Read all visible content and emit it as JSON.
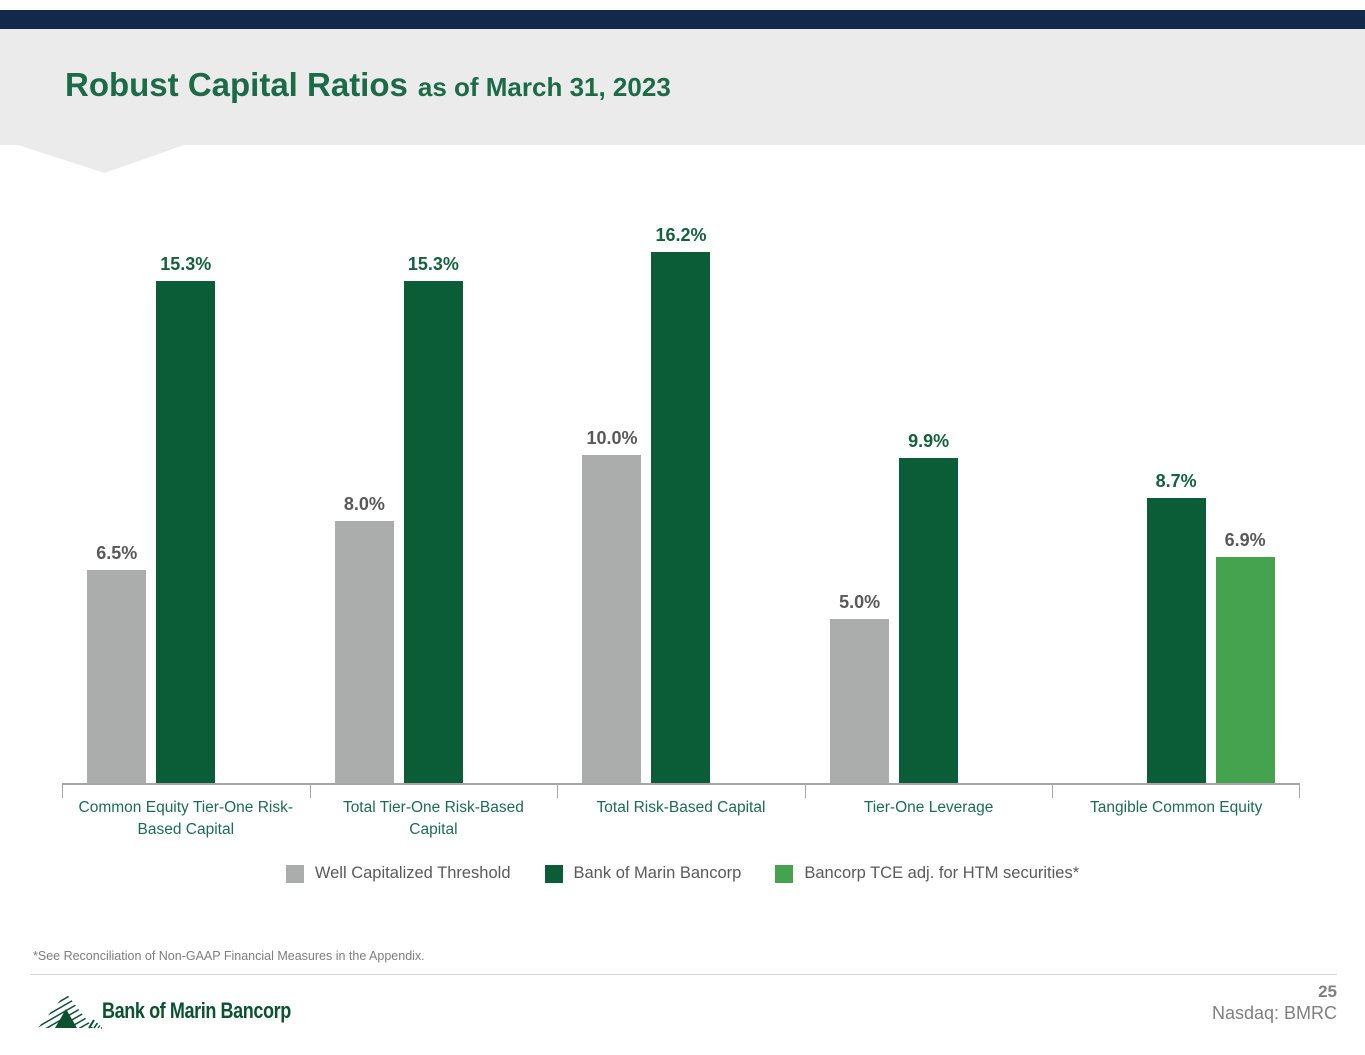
{
  "header": {
    "title": "Robust Capital Ratios",
    "subtitle": "as of March 31, 2023"
  },
  "colors": {
    "accent_bar": "#12294a",
    "header_band": "#ebebeb",
    "title_green": "#1b6a48",
    "threshold_gray": "#abadad",
    "bancorp_green": "#0b5d38",
    "tce_green": "#45a24e",
    "gray_value_label": "#595959",
    "green_value_label": "#15613f",
    "axis_gray": "#a6a6a6",
    "category_label_green": "#1e6b55",
    "legend_text": "#595959",
    "logo_green": "#0c5130"
  },
  "chart_data": {
    "type": "bar",
    "title": "Robust Capital Ratios as of March 31, 2023",
    "unit": "%",
    "ylim": [
      0,
      17.8
    ],
    "grid": false,
    "legend_position": "bottom",
    "categories": [
      "Common Equity Tier-One Risk-Based Capital",
      "Total Tier-One Risk-Based Capital",
      "Total Risk-Based Capital",
      "Tier-One Leverage",
      "Tangible Common Equity"
    ],
    "series": [
      {
        "name": "Well Capitalized Threshold",
        "color_key": "threshold_gray",
        "label_color_key": "gray_value_label",
        "values": [
          6.5,
          8.0,
          10.0,
          5.0,
          null
        ],
        "data_labels": [
          "6.5%",
          "8.0%",
          "10.0%",
          "5.0%",
          null
        ]
      },
      {
        "name": "Bank of Marin Bancorp",
        "color_key": "bancorp_green",
        "label_color_key": "green_value_label",
        "values": [
          15.3,
          15.3,
          16.2,
          9.9,
          8.7
        ],
        "data_labels": [
          "15.3%",
          "15.3%",
          "16.2%",
          "9.9%",
          "8.7%"
        ]
      },
      {
        "name": "Bancorp TCE adj. for HTM securities*",
        "color_key": "tce_green",
        "label_color_key": "gray_value_label",
        "values": [
          null,
          null,
          null,
          null,
          6.9
        ],
        "data_labels": [
          null,
          null,
          null,
          null,
          "6.9%"
        ]
      }
    ]
  },
  "footnote": "*See Reconciliation of Non-GAAP Financial Measures in the Appendix.",
  "footer": {
    "logo_text": "Bank of Marin Bancorp",
    "page_number": "25",
    "ticker": "Nasdaq: BMRC"
  }
}
